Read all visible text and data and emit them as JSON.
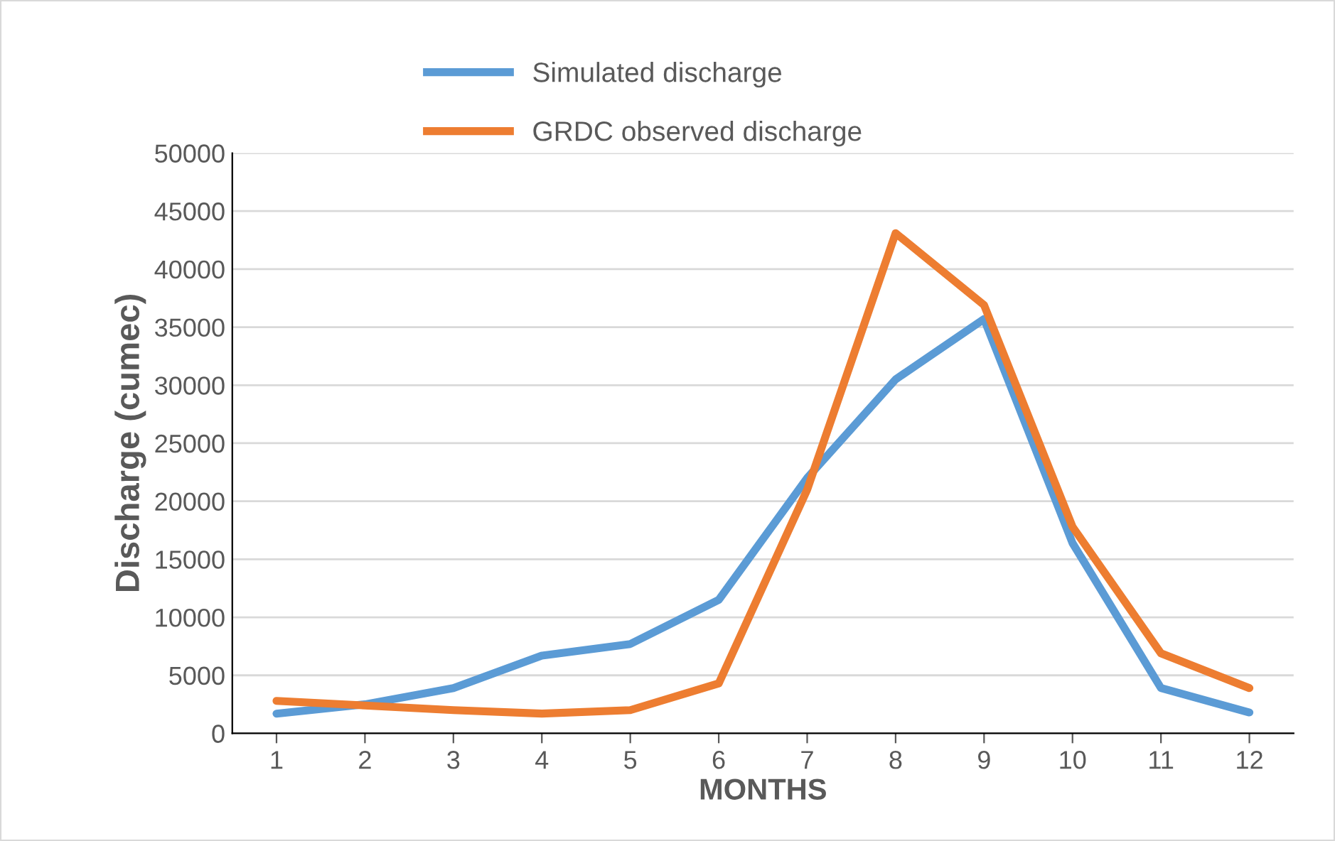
{
  "chart_data": {
    "type": "line",
    "xlabel": "MONTHS",
    "ylabel": "Discharge (cumec)",
    "categories": [
      "1",
      "2",
      "3",
      "4",
      "5",
      "6",
      "7",
      "8",
      "9",
      "10",
      "11",
      "12"
    ],
    "series": [
      {
        "name": "Simulated discharge",
        "color": "#5b9bd5",
        "values": [
          1700,
          2500,
          3900,
          6700,
          7700,
          11500,
          22000,
          30500,
          35700,
          16400,
          3900,
          1800
        ]
      },
      {
        "name": "GRDC observed discharge",
        "color": "#ed7d31",
        "values": [
          2800,
          2400,
          2000,
          1700,
          2000,
          4300,
          21000,
          43100,
          36900,
          17800,
          6900,
          3900
        ]
      }
    ],
    "ylim": [
      0,
      50000
    ],
    "yticks": [
      0,
      5000,
      10000,
      15000,
      20000,
      25000,
      30000,
      35000,
      40000,
      45000,
      50000
    ],
    "grid": "y",
    "legend": "top left",
    "marker": "none",
    "line_style": "solid"
  }
}
